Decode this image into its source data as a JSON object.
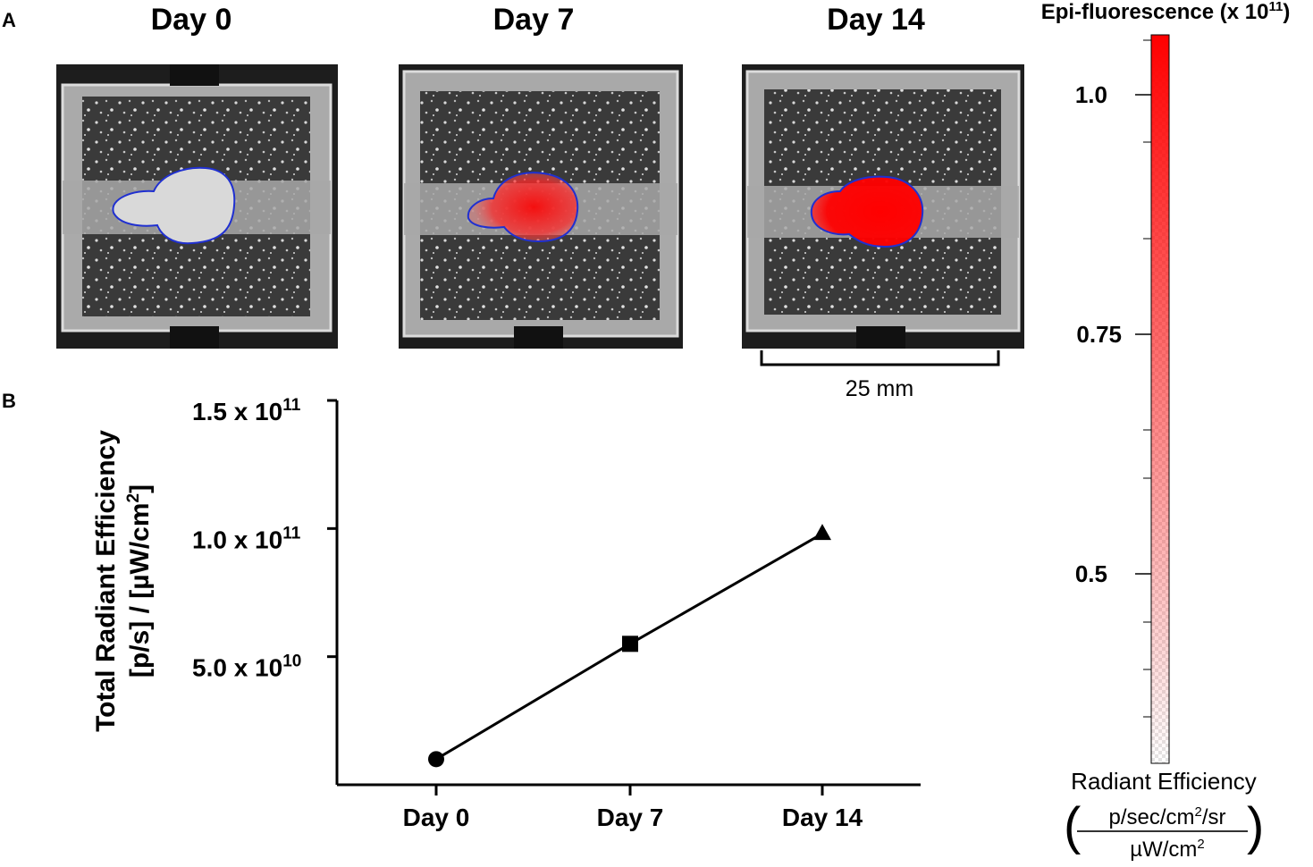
{
  "panel_a": {
    "label": "A",
    "images": [
      {
        "day": "Day 0",
        "signal": "none"
      },
      {
        "day": "Day 7",
        "signal": "moderate"
      },
      {
        "day": "Day 14",
        "signal": "high"
      }
    ],
    "scale_bar": "25 mm"
  },
  "colorbar": {
    "title_base": "Epi-fluorescence (x 10",
    "title_exp": "11",
    "title_close": ")",
    "ticks": [
      "1.0",
      "0.75",
      "0.5"
    ],
    "unit_title": "Radiant Efficiency",
    "unit_num_base": "p/sec/cm",
    "unit_num_exp": "2",
    "unit_num_tail": "/sr",
    "unit_den_base": "µW/cm",
    "unit_den_exp": "2",
    "color_high": "#ff0000",
    "color_low": "#ffffff"
  },
  "panel_b": {
    "label": "B",
    "ylabel_line1": "Total Radiant Efficiency",
    "ylabel_line2_base": "[p/s] / [µW/cm",
    "ylabel_line2_exp": "2",
    "ylabel_line2_close": "]"
  },
  "chart_data": {
    "type": "line",
    "categories": [
      "Day 0",
      "Day 7",
      "Day 14"
    ],
    "series": [
      {
        "values": [
          10000000000.0,
          55000000000.0,
          98000000000.0
        ],
        "markers": [
          "circle",
          "square",
          "triangle"
        ]
      }
    ],
    "ylim": [
      0,
      150000000000.0
    ],
    "yticks": [
      {
        "value": 150000000000.0,
        "mant": "1.5 x 10",
        "exp": "11"
      },
      {
        "value": 100000000000.0,
        "mant": "1.0 x 10",
        "exp": "11"
      },
      {
        "value": 50000000000.0,
        "mant": "5.0 x 10",
        "exp": "10"
      }
    ],
    "xlabel": "",
    "grid": false
  }
}
